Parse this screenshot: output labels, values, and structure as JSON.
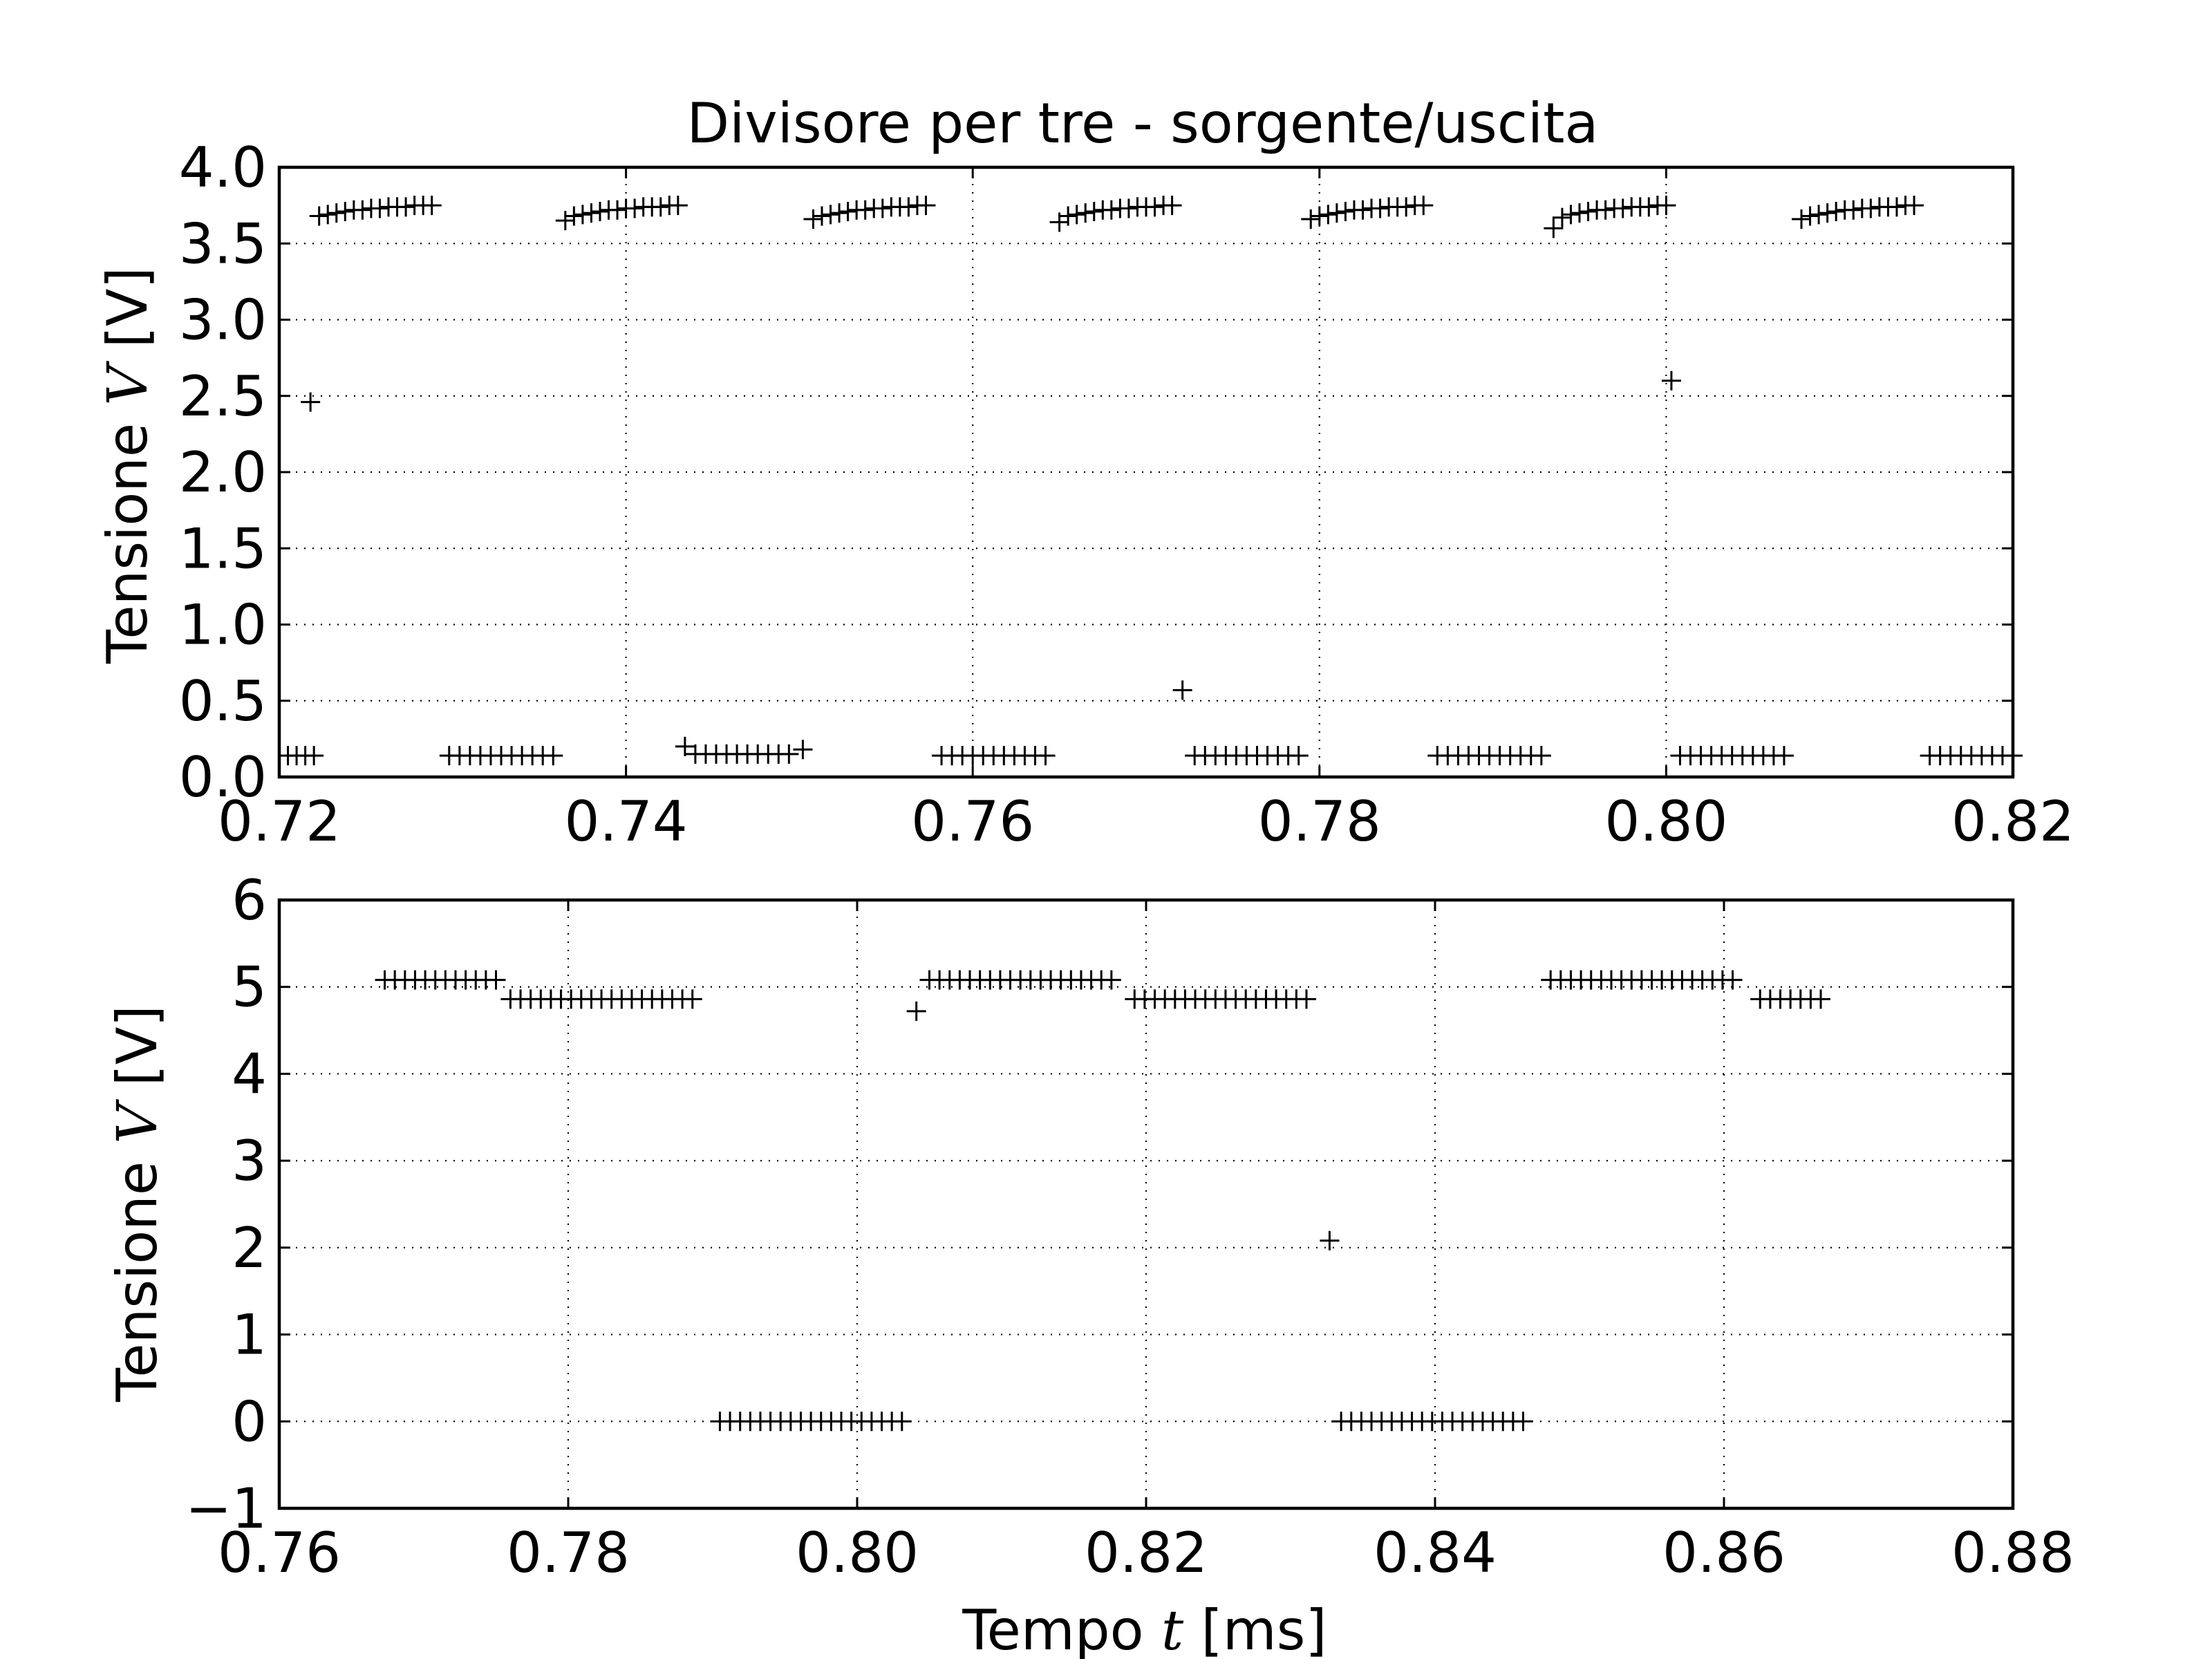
{
  "chart_data": [
    {
      "type": "scatter",
      "title": "Divisore per tre - sorgente/uscita",
      "xlabel": "",
      "ylabel": {
        "prefix": "Tensione ",
        "var": "V",
        "suffix": " [V]"
      },
      "xlim": [
        0.72,
        0.82
      ],
      "ylim": [
        0.0,
        4.0
      ],
      "xticks": [
        "0.72",
        "0.74",
        "0.76",
        "0.78",
        "0.80",
        "0.82"
      ],
      "yticks": [
        "0.0",
        "0.5",
        "1.0",
        "1.5",
        "2.0",
        "2.5",
        "3.0",
        "3.5",
        "4.0"
      ],
      "xtick_values": [
        0.72,
        0.74,
        0.76,
        0.78,
        0.8,
        0.82
      ],
      "ytick_values": [
        0.0,
        0.5,
        1.0,
        1.5,
        2.0,
        2.5,
        3.0,
        3.5,
        4.0
      ],
      "grid": true,
      "marker": "+",
      "points": [
        [
          0.7205,
          0.14
        ],
        [
          0.721,
          0.14
        ],
        [
          0.7215,
          0.14
        ],
        [
          0.722,
          0.14
        ],
        [
          0.7218,
          2.46
        ],
        [
          0.7223,
          3.68
        ],
        [
          0.7228,
          3.69
        ],
        [
          0.7233,
          3.7
        ],
        [
          0.7238,
          3.71
        ],
        [
          0.7243,
          3.72
        ],
        [
          0.7248,
          3.72
        ],
        [
          0.7253,
          3.73
        ],
        [
          0.7258,
          3.73
        ],
        [
          0.7263,
          3.74
        ],
        [
          0.7268,
          3.74
        ],
        [
          0.7273,
          3.74
        ],
        [
          0.7278,
          3.75
        ],
        [
          0.7283,
          3.75
        ],
        [
          0.7288,
          3.75
        ],
        [
          0.7298,
          0.14
        ],
        [
          0.7304,
          0.14
        ],
        [
          0.731,
          0.14
        ],
        [
          0.7316,
          0.14
        ],
        [
          0.7322,
          0.14
        ],
        [
          0.7328,
          0.14
        ],
        [
          0.7334,
          0.14
        ],
        [
          0.734,
          0.14
        ],
        [
          0.7346,
          0.14
        ],
        [
          0.7352,
          0.14
        ],
        [
          0.7358,
          0.14
        ],
        [
          0.7365,
          3.65
        ],
        [
          0.737,
          3.68
        ],
        [
          0.7375,
          3.69
        ],
        [
          0.738,
          3.7
        ],
        [
          0.7385,
          3.71
        ],
        [
          0.739,
          3.72
        ],
        [
          0.7395,
          3.72
        ],
        [
          0.74,
          3.73
        ],
        [
          0.7405,
          3.73
        ],
        [
          0.741,
          3.74
        ],
        [
          0.7415,
          3.74
        ],
        [
          0.742,
          3.74
        ],
        [
          0.7425,
          3.75
        ],
        [
          0.743,
          3.75
        ],
        [
          0.7434,
          0.2
        ],
        [
          0.744,
          0.15
        ],
        [
          0.7446,
          0.15
        ],
        [
          0.7452,
          0.15
        ],
        [
          0.7458,
          0.15
        ],
        [
          0.7464,
          0.15
        ],
        [
          0.747,
          0.15
        ],
        [
          0.7476,
          0.15
        ],
        [
          0.7482,
          0.15
        ],
        [
          0.7488,
          0.15
        ],
        [
          0.7494,
          0.15
        ],
        [
          0.7502,
          0.18
        ],
        [
          0.7508,
          3.66
        ],
        [
          0.7513,
          3.68
        ],
        [
          0.7518,
          3.69
        ],
        [
          0.7523,
          3.7
        ],
        [
          0.7528,
          3.71
        ],
        [
          0.7533,
          3.72
        ],
        [
          0.7538,
          3.72
        ],
        [
          0.7543,
          3.73
        ],
        [
          0.7548,
          3.73
        ],
        [
          0.7553,
          3.74
        ],
        [
          0.7558,
          3.74
        ],
        [
          0.7563,
          3.74
        ],
        [
          0.7568,
          3.75
        ],
        [
          0.7573,
          3.75
        ],
        [
          0.7582,
          0.14
        ],
        [
          0.7588,
          0.14
        ],
        [
          0.7594,
          0.14
        ],
        [
          0.76,
          0.14
        ],
        [
          0.7606,
          0.14
        ],
        [
          0.7612,
          0.14
        ],
        [
          0.7618,
          0.14
        ],
        [
          0.7624,
          0.14
        ],
        [
          0.763,
          0.14
        ],
        [
          0.7636,
          0.14
        ],
        [
          0.7642,
          0.14
        ],
        [
          0.765,
          3.64
        ],
        [
          0.7655,
          3.68
        ],
        [
          0.766,
          3.69
        ],
        [
          0.7665,
          3.7
        ],
        [
          0.767,
          3.71
        ],
        [
          0.7675,
          3.72
        ],
        [
          0.768,
          3.72
        ],
        [
          0.7685,
          3.73
        ],
        [
          0.769,
          3.73
        ],
        [
          0.7695,
          3.74
        ],
        [
          0.77,
          3.74
        ],
        [
          0.7705,
          3.74
        ],
        [
          0.771,
          3.75
        ],
        [
          0.7715,
          3.75
        ],
        [
          0.7721,
          0.57
        ],
        [
          0.7728,
          0.14
        ],
        [
          0.7734,
          0.14
        ],
        [
          0.774,
          0.14
        ],
        [
          0.7746,
          0.14
        ],
        [
          0.7752,
          0.14
        ],
        [
          0.7758,
          0.14
        ],
        [
          0.7764,
          0.14
        ],
        [
          0.777,
          0.14
        ],
        [
          0.7776,
          0.14
        ],
        [
          0.7782,
          0.14
        ],
        [
          0.7788,
          0.14
        ],
        [
          0.7795,
          3.66
        ],
        [
          0.78,
          3.68
        ],
        [
          0.7805,
          3.69
        ],
        [
          0.781,
          3.7
        ],
        [
          0.7815,
          3.71
        ],
        [
          0.782,
          3.72
        ],
        [
          0.7825,
          3.72
        ],
        [
          0.783,
          3.73
        ],
        [
          0.7835,
          3.73
        ],
        [
          0.784,
          3.74
        ],
        [
          0.7845,
          3.74
        ],
        [
          0.785,
          3.74
        ],
        [
          0.7855,
          3.75
        ],
        [
          0.786,
          3.75
        ],
        [
          0.7868,
          0.14
        ],
        [
          0.7874,
          0.14
        ],
        [
          0.788,
          0.14
        ],
        [
          0.7886,
          0.14
        ],
        [
          0.7892,
          0.14
        ],
        [
          0.7898,
          0.14
        ],
        [
          0.7904,
          0.14
        ],
        [
          0.791,
          0.14
        ],
        [
          0.7916,
          0.14
        ],
        [
          0.7922,
          0.14
        ],
        [
          0.7928,
          0.14
        ],
        [
          0.7935,
          3.6
        ],
        [
          0.794,
          3.67
        ],
        [
          0.7945,
          3.69
        ],
        [
          0.795,
          3.7
        ],
        [
          0.7955,
          3.71
        ],
        [
          0.796,
          3.72
        ],
        [
          0.7965,
          3.72
        ],
        [
          0.797,
          3.73
        ],
        [
          0.7975,
          3.73
        ],
        [
          0.798,
          3.74
        ],
        [
          0.7985,
          3.74
        ],
        [
          0.799,
          3.74
        ],
        [
          0.7995,
          3.75
        ],
        [
          0.8,
          3.75
        ],
        [
          0.8003,
          2.6
        ],
        [
          0.8008,
          0.14
        ],
        [
          0.8014,
          0.14
        ],
        [
          0.802,
          0.14
        ],
        [
          0.8026,
          0.14
        ],
        [
          0.8032,
          0.14
        ],
        [
          0.8038,
          0.14
        ],
        [
          0.8044,
          0.14
        ],
        [
          0.805,
          0.14
        ],
        [
          0.8056,
          0.14
        ],
        [
          0.8062,
          0.14
        ],
        [
          0.8068,
          0.14
        ],
        [
          0.8078,
          3.66
        ],
        [
          0.8083,
          3.68
        ],
        [
          0.8088,
          3.69
        ],
        [
          0.8093,
          3.7
        ],
        [
          0.8098,
          3.71
        ],
        [
          0.8103,
          3.72
        ],
        [
          0.8108,
          3.72
        ],
        [
          0.8113,
          3.73
        ],
        [
          0.8118,
          3.73
        ],
        [
          0.8123,
          3.74
        ],
        [
          0.8128,
          3.74
        ],
        [
          0.8133,
          3.74
        ],
        [
          0.8138,
          3.75
        ],
        [
          0.8143,
          3.75
        ],
        [
          0.8152,
          0.14
        ],
        [
          0.8158,
          0.14
        ],
        [
          0.8164,
          0.14
        ],
        [
          0.817,
          0.14
        ],
        [
          0.8176,
          0.14
        ],
        [
          0.8182,
          0.14
        ],
        [
          0.8188,
          0.14
        ],
        [
          0.8194,
          0.14
        ],
        [
          0.82,
          0.14
        ]
      ]
    },
    {
      "type": "scatter",
      "title": "",
      "xlabel": {
        "prefix": "Tempo ",
        "var": "t",
        "suffix": " [ms]"
      },
      "ylabel": {
        "prefix": "Tensione ",
        "var": "V",
        "suffix": " [V]"
      },
      "xlim": [
        0.76,
        0.88
      ],
      "ylim": [
        -1,
        6
      ],
      "xticks": [
        "0.76",
        "0.78",
        "0.80",
        "0.82",
        "0.84",
        "0.86",
        "0.88"
      ],
      "yticks": [
        "−1",
        "0",
        "1",
        "2",
        "3",
        "4",
        "5",
        "6"
      ],
      "xtick_values": [
        0.76,
        0.78,
        0.8,
        0.82,
        0.84,
        0.86,
        0.88
      ],
      "ytick_values": [
        -1,
        0,
        1,
        2,
        3,
        4,
        5,
        6
      ],
      "grid": true,
      "marker": "+",
      "points": [
        [
          0.7673,
          5.08
        ],
        [
          0.768,
          5.08
        ],
        [
          0.7687,
          5.08
        ],
        [
          0.7694,
          5.08
        ],
        [
          0.7701,
          5.08
        ],
        [
          0.7708,
          5.08
        ],
        [
          0.7715,
          5.08
        ],
        [
          0.7722,
          5.08
        ],
        [
          0.7729,
          5.08
        ],
        [
          0.7736,
          5.08
        ],
        [
          0.7743,
          5.08
        ],
        [
          0.775,
          5.08
        ],
        [
          0.776,
          4.86
        ],
        [
          0.7767,
          4.86
        ],
        [
          0.7774,
          4.86
        ],
        [
          0.7781,
          4.86
        ],
        [
          0.7788,
          4.86
        ],
        [
          0.7795,
          4.86
        ],
        [
          0.7802,
          4.86
        ],
        [
          0.7809,
          4.86
        ],
        [
          0.7816,
          4.86
        ],
        [
          0.7823,
          4.86
        ],
        [
          0.783,
          4.86
        ],
        [
          0.7837,
          4.86
        ],
        [
          0.7844,
          4.86
        ],
        [
          0.7851,
          4.86
        ],
        [
          0.7858,
          4.86
        ],
        [
          0.7865,
          4.86
        ],
        [
          0.7872,
          4.86
        ],
        [
          0.7879,
          4.86
        ],
        [
          0.7886,
          4.86
        ],
        [
          0.7905,
          0.0
        ],
        [
          0.7912,
          0.0
        ],
        [
          0.7919,
          0.0
        ],
        [
          0.7926,
          0.0
        ],
        [
          0.7933,
          0.0
        ],
        [
          0.794,
          0.0
        ],
        [
          0.7947,
          0.0
        ],
        [
          0.7954,
          0.0
        ],
        [
          0.7961,
          0.0
        ],
        [
          0.7968,
          0.0
        ],
        [
          0.7975,
          0.0
        ],
        [
          0.7982,
          0.0
        ],
        [
          0.7989,
          0.0
        ],
        [
          0.7996,
          0.0
        ],
        [
          0.8003,
          0.0
        ],
        [
          0.801,
          0.0
        ],
        [
          0.8017,
          0.0
        ],
        [
          0.8024,
          0.0
        ],
        [
          0.8031,
          0.0
        ],
        [
          0.8041,
          4.72
        ],
        [
          0.805,
          5.08
        ],
        [
          0.8057,
          5.08
        ],
        [
          0.8064,
          5.08
        ],
        [
          0.8071,
          5.08
        ],
        [
          0.8078,
          5.08
        ],
        [
          0.8085,
          5.08
        ],
        [
          0.8092,
          5.08
        ],
        [
          0.8099,
          5.08
        ],
        [
          0.8106,
          5.08
        ],
        [
          0.8113,
          5.08
        ],
        [
          0.812,
          5.08
        ],
        [
          0.8127,
          5.08
        ],
        [
          0.8134,
          5.08
        ],
        [
          0.8141,
          5.08
        ],
        [
          0.8148,
          5.08
        ],
        [
          0.8155,
          5.08
        ],
        [
          0.8162,
          5.08
        ],
        [
          0.8169,
          5.08
        ],
        [
          0.8176,
          5.08
        ],
        [
          0.8192,
          4.86
        ],
        [
          0.8199,
          4.86
        ],
        [
          0.8206,
          4.86
        ],
        [
          0.8213,
          4.86
        ],
        [
          0.822,
          4.86
        ],
        [
          0.8227,
          4.86
        ],
        [
          0.8234,
          4.86
        ],
        [
          0.8241,
          4.86
        ],
        [
          0.8248,
          4.86
        ],
        [
          0.8255,
          4.86
        ],
        [
          0.8262,
          4.86
        ],
        [
          0.8269,
          4.86
        ],
        [
          0.8276,
          4.86
        ],
        [
          0.8283,
          4.86
        ],
        [
          0.829,
          4.86
        ],
        [
          0.8297,
          4.86
        ],
        [
          0.8304,
          4.86
        ],
        [
          0.8311,
          4.86
        ],
        [
          0.8327,
          2.08
        ],
        [
          0.8335,
          0.0
        ],
        [
          0.8342,
          0.0
        ],
        [
          0.8349,
          0.0
        ],
        [
          0.8356,
          0.0
        ],
        [
          0.8363,
          0.0
        ],
        [
          0.837,
          0.0
        ],
        [
          0.8377,
          0.0
        ],
        [
          0.8384,
          0.0
        ],
        [
          0.8391,
          0.0
        ],
        [
          0.8398,
          0.0
        ],
        [
          0.8405,
          0.0
        ],
        [
          0.8412,
          0.0
        ],
        [
          0.8419,
          0.0
        ],
        [
          0.8426,
          0.0
        ],
        [
          0.8433,
          0.0
        ],
        [
          0.844,
          0.0
        ],
        [
          0.8447,
          0.0
        ],
        [
          0.8454,
          0.0
        ],
        [
          0.8461,
          0.0
        ],
        [
          0.848,
          5.08
        ],
        [
          0.8487,
          5.08
        ],
        [
          0.8494,
          5.08
        ],
        [
          0.8501,
          5.08
        ],
        [
          0.8508,
          5.08
        ],
        [
          0.8515,
          5.08
        ],
        [
          0.8522,
          5.08
        ],
        [
          0.8529,
          5.08
        ],
        [
          0.8536,
          5.08
        ],
        [
          0.8543,
          5.08
        ],
        [
          0.855,
          5.08
        ],
        [
          0.8557,
          5.08
        ],
        [
          0.8564,
          5.08
        ],
        [
          0.8571,
          5.08
        ],
        [
          0.8578,
          5.08
        ],
        [
          0.8585,
          5.08
        ],
        [
          0.8592,
          5.08
        ],
        [
          0.8599,
          5.08
        ],
        [
          0.8606,
          5.08
        ],
        [
          0.8625,
          4.86
        ],
        [
          0.8632,
          4.86
        ],
        [
          0.8639,
          4.86
        ],
        [
          0.8646,
          4.86
        ],
        [
          0.8653,
          4.86
        ],
        [
          0.866,
          4.86
        ],
        [
          0.8667,
          4.86
        ]
      ]
    }
  ]
}
